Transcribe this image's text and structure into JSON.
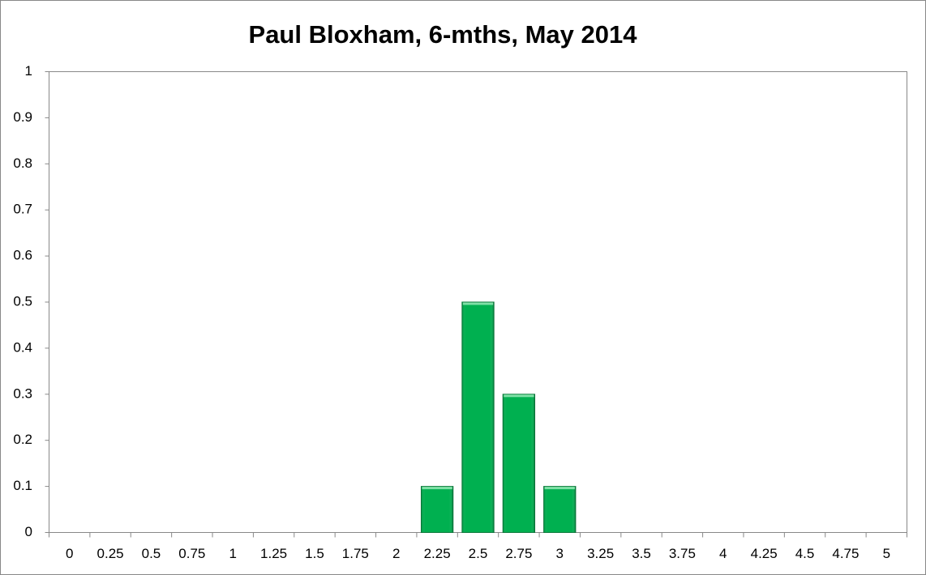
{
  "chart_data": {
    "type": "bar",
    "title": "Paul Bloxham, 6-mths, May 2014",
    "categories": [
      "0",
      "0.25",
      "0.5",
      "0.75",
      "1",
      "1.25",
      "1.5",
      "1.75",
      "2",
      "2.25",
      "2.5",
      "2.75",
      "3",
      "3.25",
      "3.5",
      "3.75",
      "4",
      "4.25",
      "4.5",
      "4.75",
      "5"
    ],
    "values": [
      0,
      0,
      0,
      0,
      0,
      0,
      0,
      0,
      0,
      0.1,
      0.5,
      0.3,
      0.1,
      0,
      0,
      0,
      0,
      0,
      0,
      0,
      0
    ],
    "color": "#00b050",
    "ylim": [
      0,
      1
    ],
    "yticks": [
      0,
      0.1,
      0.2,
      0.3,
      0.4,
      0.5,
      0.6,
      0.7,
      0.8,
      0.9,
      1
    ],
    "grid": false
  }
}
